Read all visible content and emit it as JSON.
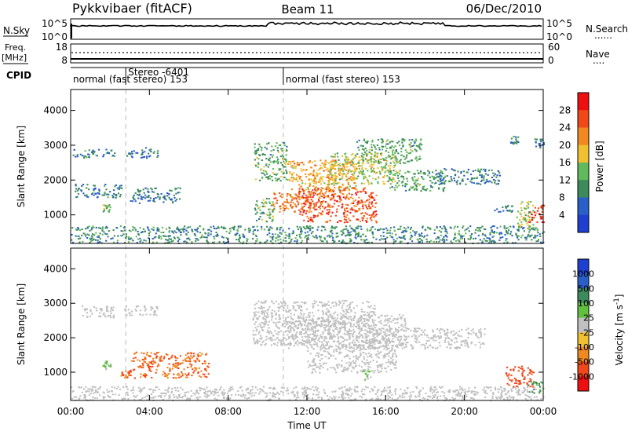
{
  "header": {
    "station": "Pykkvibaer (fitACF)",
    "beam": "Beam 11",
    "date": "06/Dec/2010"
  },
  "nsky_panel": {
    "left_label": "N.Sky",
    "left_ticks": [
      "10^5",
      "10^0"
    ],
    "right_ticks": [
      "10^5",
      "10^0"
    ],
    "right_label": "N.Search",
    "right_legend_line": "......"
  },
  "freq_panel": {
    "left_label": "Freq.",
    "left_unit": "[MHz]",
    "left_ticks": [
      "18",
      "8"
    ],
    "right_ticks": [
      "60",
      "0"
    ],
    "right_label": "Nave",
    "right_legend_line": "...."
  },
  "cpid_panel": {
    "label": "CPID",
    "segments": [
      {
        "start_hour": 0.0,
        "text": "normal (fast stereo) 153"
      },
      {
        "start_hour": 2.8,
        "text": "Stereo -6401"
      },
      {
        "start_hour": 10.8,
        "text": "normal (fast stereo) 153"
      }
    ]
  },
  "colors": {
    "power_scale": [
      "#1f3fd0",
      "#2a5fc8",
      "#3d8a5a",
      "#62b85c",
      "#f0c030",
      "#f08a20",
      "#f04818",
      "#ee1010"
    ],
    "velocity_scale": [
      "#ee1010",
      "#f04818",
      "#f08a20",
      "#f0c030",
      "#c0c0c0",
      "#62c040",
      "#3d8a5a",
      "#2a5fc8",
      "#1f3fd0"
    ],
    "ground_scatter": "#c0c0c0"
  },
  "chart_data": [
    {
      "type": "heatmap",
      "name": "power",
      "xlabel": "",
      "ylabel": "Slant Range [km]",
      "xlim": [
        0,
        24
      ],
      "ylim": [
        180,
        4600
      ],
      "yticks": [
        1000,
        2000,
        3000,
        4000
      ],
      "colorbar_label": "Power [dB]",
      "colorbar_ticks": [
        4,
        8,
        12,
        16,
        20,
        24,
        28
      ],
      "colorbar_range": [
        0,
        32
      ],
      "regions": [
        {
          "x": [
            0.1,
            2.2
          ],
          "y": [
            2650,
            2900
          ],
          "value": 8
        },
        {
          "x": [
            2.8,
            4.4
          ],
          "y": [
            2650,
            2950
          ],
          "value": 8
        },
        {
          "x": [
            0.2,
            2.6
          ],
          "y": [
            1500,
            1900
          ],
          "value": 8
        },
        {
          "x": [
            1.6,
            2.0
          ],
          "y": [
            1100,
            1350
          ],
          "value": 14
        },
        {
          "x": [
            3.0,
            5.6
          ],
          "y": [
            1350,
            1800
          ],
          "value": 8
        },
        {
          "x": [
            0.0,
            24.0
          ],
          "y": [
            200,
            700
          ],
          "value": 10
        },
        {
          "x": [
            9.3,
            10.3
          ],
          "y": [
            800,
            1500
          ],
          "value": 12
        },
        {
          "x": [
            9.3,
            11.0
          ],
          "y": [
            2000,
            3100
          ],
          "value": 12
        },
        {
          "x": [
            10.2,
            12.2
          ],
          "y": [
            1100,
            1700
          ],
          "value": 24
        },
        {
          "x": [
            11.0,
            14.5
          ],
          "y": [
            1500,
            2600
          ],
          "value": 20
        },
        {
          "x": [
            11.5,
            15.5
          ],
          "y": [
            800,
            1800
          ],
          "value": 26
        },
        {
          "x": [
            13.0,
            16.5
          ],
          "y": [
            1900,
            2800
          ],
          "value": 16
        },
        {
          "x": [
            14.5,
            17.8
          ],
          "y": [
            2500,
            3200
          ],
          "value": 12
        },
        {
          "x": [
            16.0,
            19.0
          ],
          "y": [
            1700,
            2300
          ],
          "value": 12
        },
        {
          "x": [
            18.5,
            21.8
          ],
          "y": [
            1900,
            2350
          ],
          "value": 8
        },
        {
          "x": [
            21.5,
            22.5
          ],
          "y": [
            1100,
            1300
          ],
          "value": 8
        },
        {
          "x": [
            22.3,
            22.7
          ],
          "y": [
            3050,
            3300
          ],
          "value": 8
        },
        {
          "x": [
            23.5,
            24.0
          ],
          "y": [
            2950,
            3200
          ],
          "value": 8
        },
        {
          "x": [
            22.6,
            23.5
          ],
          "y": [
            600,
            1400
          ],
          "value": 16
        },
        {
          "x": [
            23.2,
            24.0
          ],
          "y": [
            800,
            1300
          ],
          "value": 28
        }
      ]
    },
    {
      "type": "heatmap",
      "name": "velocity",
      "xlabel": "Time UT",
      "ylabel": "Slant Range [km]",
      "xlim": [
        0,
        24
      ],
      "ylim": [
        180,
        4600
      ],
      "xticks": [
        "00:00",
        "04:00",
        "08:00",
        "12:00",
        "16:00",
        "20:00",
        "00:00"
      ],
      "yticks": [
        1000,
        2000,
        3000,
        4000
      ],
      "colorbar_label": "Velocity [m s-1]",
      "colorbar_ticks": [
        "1000",
        "500",
        "100",
        "25",
        "-25",
        "-100",
        "-500",
        "-1000"
      ],
      "regions": [
        {
          "x": [
            0.4,
            2.2
          ],
          "y": [
            2600,
            2950
          ],
          "value": "ground"
        },
        {
          "x": [
            2.6,
            4.4
          ],
          "y": [
            2650,
            2950
          ],
          "value": "ground"
        },
        {
          "x": [
            0.0,
            24.0
          ],
          "y": [
            200,
            600
          ],
          "value": "ground"
        },
        {
          "x": [
            9.2,
            15.5
          ],
          "y": [
            1800,
            3100
          ],
          "value": "ground"
        },
        {
          "x": [
            11.0,
            17.0
          ],
          "y": [
            1700,
            2700
          ],
          "value": "ground"
        },
        {
          "x": [
            15.0,
            21.0
          ],
          "y": [
            1700,
            2300
          ],
          "value": "ground"
        },
        {
          "x": [
            12.0,
            16.5
          ],
          "y": [
            1000,
            1800
          ],
          "value": "ground"
        },
        {
          "x": [
            1.6,
            2.0
          ],
          "y": [
            1100,
            1350
          ],
          "value": 100
        },
        {
          "x": [
            3.0,
            7.0
          ],
          "y": [
            850,
            1600
          ],
          "value": -100
        },
        {
          "x": [
            2.5,
            3.0
          ],
          "y": [
            850,
            1050
          ],
          "value": -100
        },
        {
          "x": [
            14.8,
            15.2
          ],
          "y": [
            800,
            1100
          ],
          "value": 100
        },
        {
          "x": [
            22.0,
            23.6
          ],
          "y": [
            600,
            1200
          ],
          "value": -300
        },
        {
          "x": [
            23.2,
            24.0
          ],
          "y": [
            400,
            800
          ],
          "value": 500
        }
      ]
    }
  ],
  "axis_labels": {
    "power_panel_y": "Slant Range [km]",
    "velocity_panel_y": "Slant Range [km]",
    "time_axis": "Time UT",
    "power_colorbar": "Power [dB]",
    "velocity_colorbar": "Velocity [m s",
    "velocity_colorbar_sup": "-1",
    "velocity_colorbar_close": "]"
  }
}
